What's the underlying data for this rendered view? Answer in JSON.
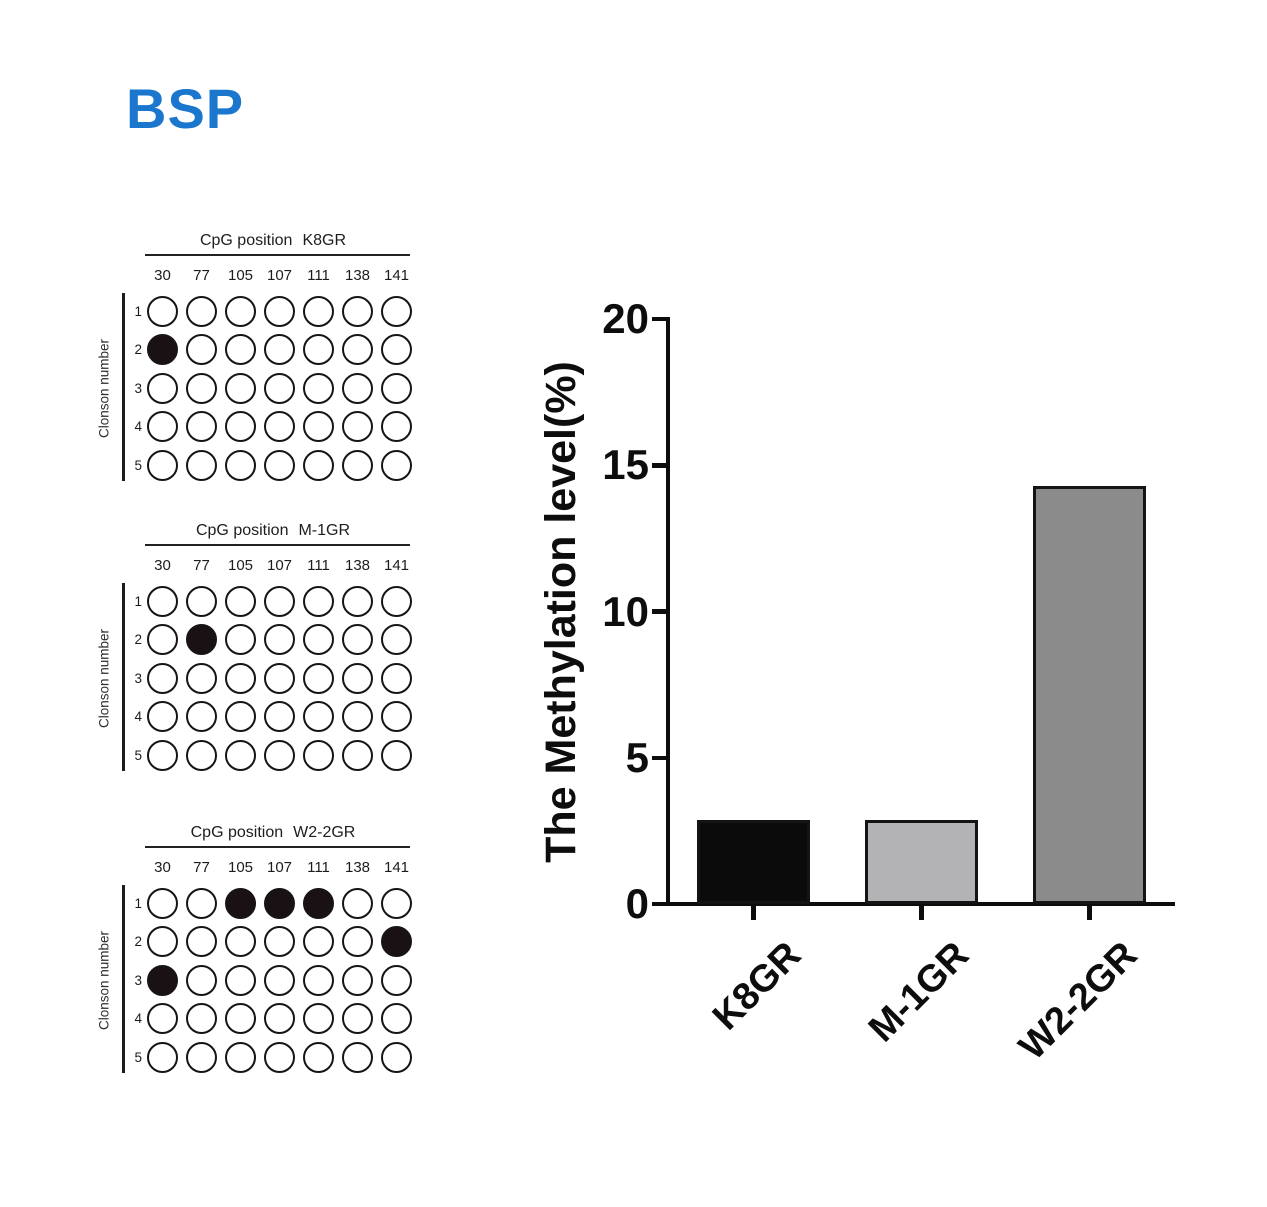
{
  "figure_title": "BSP",
  "figure_title_color": "#1b76cd",
  "chart_data": [
    {
      "type": "heatmap",
      "title": "CpG position  K8GR",
      "title_prefix": "CpG position",
      "sample": "K8GR",
      "ylabel": "Clonson number",
      "columns": [
        "30",
        "77",
        "105",
        "107",
        "111",
        "138",
        "141"
      ],
      "rows": [
        "1",
        "2",
        "3",
        "4",
        "5"
      ],
      "filled": [
        [
          0,
          0,
          0,
          0,
          0,
          0,
          0
        ],
        [
          1,
          0,
          0,
          0,
          0,
          0,
          0
        ],
        [
          0,
          0,
          0,
          0,
          0,
          0,
          0
        ],
        [
          0,
          0,
          0,
          0,
          0,
          0,
          0
        ],
        [
          0,
          0,
          0,
          0,
          0,
          0,
          0
        ]
      ]
    },
    {
      "type": "heatmap",
      "title": "CpG position  M-1GR",
      "title_prefix": "CpG position",
      "sample": "M-1GR",
      "ylabel": "Clonson number",
      "columns": [
        "30",
        "77",
        "105",
        "107",
        "111",
        "138",
        "141"
      ],
      "rows": [
        "1",
        "2",
        "3",
        "4",
        "5"
      ],
      "filled": [
        [
          0,
          0,
          0,
          0,
          0,
          0,
          0
        ],
        [
          0,
          1,
          0,
          0,
          0,
          0,
          0
        ],
        [
          0,
          0,
          0,
          0,
          0,
          0,
          0
        ],
        [
          0,
          0,
          0,
          0,
          0,
          0,
          0
        ],
        [
          0,
          0,
          0,
          0,
          0,
          0,
          0
        ]
      ]
    },
    {
      "type": "heatmap",
      "title": "CpG position  W2-2GR",
      "title_prefix": "CpG position",
      "sample": "W2-2GR",
      "ylabel": "Clonson number",
      "columns": [
        "30",
        "77",
        "105",
        "107",
        "111",
        "138",
        "141"
      ],
      "rows": [
        "1",
        "2",
        "3",
        "4",
        "5"
      ],
      "filled": [
        [
          0,
          0,
          1,
          1,
          1,
          0,
          0
        ],
        [
          0,
          0,
          0,
          0,
          0,
          0,
          1
        ],
        [
          1,
          0,
          0,
          0,
          0,
          0,
          0
        ],
        [
          0,
          0,
          0,
          0,
          0,
          0,
          0
        ],
        [
          0,
          0,
          0,
          0,
          0,
          0,
          0
        ]
      ]
    },
    {
      "type": "bar",
      "categories": [
        "K8GR",
        "M-1GR",
        "W2-2GR"
      ],
      "values": [
        2.86,
        2.86,
        14.29
      ],
      "title": "",
      "xlabel": "",
      "ylabel": "The Methylation level(%)",
      "ylim": [
        0,
        20
      ],
      "yticks": [
        0,
        5,
        10,
        15,
        20
      ],
      "grid": false,
      "legend_position": "none",
      "bar_colors": [
        "#0b0b0b",
        "#b3b3b6",
        "#8b8b8b"
      ],
      "bar_border_color": "#141414"
    }
  ]
}
